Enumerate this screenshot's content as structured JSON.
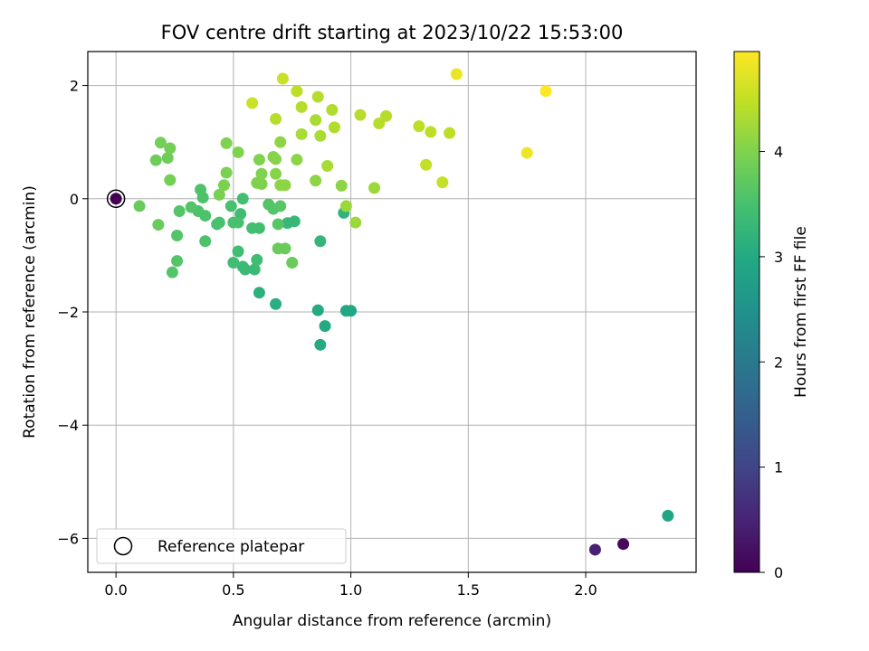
{
  "chart_data": {
    "type": "scatter",
    "title": "FOV centre drift starting at 2023/10/22 15:53:00",
    "xlabel": "Angular distance from reference (arcmin)",
    "ylabel": "Rotation from reference (arcmin)",
    "xlim": [
      -0.12,
      2.47
    ],
    "ylim": [
      -6.6,
      2.6
    ],
    "xticks": [
      0.0,
      0.5,
      1.0,
      1.5,
      2.0
    ],
    "xtick_labels": [
      "0.0",
      "0.5",
      "1.0",
      "1.5",
      "2.0"
    ],
    "yticks": [
      2,
      0,
      -2,
      -4,
      -6
    ],
    "ytick_labels": [
      "2",
      "0",
      "−2",
      "−4",
      "−6"
    ],
    "grid": true,
    "legend": {
      "position": "lower-left",
      "entries": [
        "Reference platepar"
      ]
    },
    "reference_point": {
      "x": 0.0,
      "y": 0.0,
      "color_value": 0.0
    },
    "colorbar": {
      "label": "Hours from first FF file",
      "range": [
        0,
        4.95
      ],
      "ticks": [
        0,
        1,
        2,
        3,
        4
      ],
      "tick_labels": [
        "0",
        "1",
        "2",
        "3",
        "4"
      ],
      "colormap": "viridis"
    },
    "points": [
      {
        "x": 2.16,
        "y": -6.1,
        "c": 0.1
      },
      {
        "x": 2.04,
        "y": -6.2,
        "c": 0.45
      },
      {
        "x": 2.35,
        "y": -5.6,
        "c": 2.9
      },
      {
        "x": 0.98,
        "y": -1.98,
        "c": 2.95
      },
      {
        "x": 1.0,
        "y": -1.98,
        "c": 2.95
      },
      {
        "x": 0.86,
        "y": -1.97,
        "c": 3.0
      },
      {
        "x": 0.89,
        "y": -2.25,
        "c": 3.0
      },
      {
        "x": 0.87,
        "y": -2.58,
        "c": 3.0
      },
      {
        "x": 0.68,
        "y": -1.86,
        "c": 3.1
      },
      {
        "x": 0.61,
        "y": -1.66,
        "c": 3.15
      },
      {
        "x": 0.97,
        "y": -0.25,
        "c": 3.2
      },
      {
        "x": 0.87,
        "y": -0.75,
        "c": 3.25
      },
      {
        "x": 0.76,
        "y": -0.4,
        "c": 3.3
      },
      {
        "x": 0.73,
        "y": -0.43,
        "c": 3.3
      },
      {
        "x": 0.54,
        "y": -1.2,
        "c": 3.35
      },
      {
        "x": 0.59,
        "y": -1.25,
        "c": 3.35
      },
      {
        "x": 0.55,
        "y": -1.25,
        "c": 3.35
      },
      {
        "x": 0.6,
        "y": -1.08,
        "c": 3.4
      },
      {
        "x": 0.5,
        "y": -1.13,
        "c": 3.4
      },
      {
        "x": 0.52,
        "y": -0.93,
        "c": 3.4
      },
      {
        "x": 0.53,
        "y": -0.27,
        "c": 3.4
      },
      {
        "x": 0.54,
        "y": 0.0,
        "c": 3.45
      },
      {
        "x": 0.58,
        "y": -0.52,
        "c": 3.45
      },
      {
        "x": 0.61,
        "y": -0.52,
        "c": 3.45
      },
      {
        "x": 0.43,
        "y": -0.45,
        "c": 3.5
      },
      {
        "x": 0.44,
        "y": -0.42,
        "c": 3.5
      },
      {
        "x": 0.49,
        "y": -0.13,
        "c": 3.5
      },
      {
        "x": 0.5,
        "y": -0.42,
        "c": 3.5
      },
      {
        "x": 0.52,
        "y": -0.42,
        "c": 3.5
      },
      {
        "x": 0.38,
        "y": -0.75,
        "c": 3.55
      },
      {
        "x": 0.38,
        "y": -0.3,
        "c": 3.55
      },
      {
        "x": 0.37,
        "y": 0.02,
        "c": 3.55
      },
      {
        "x": 0.36,
        "y": 0.16,
        "c": 3.55
      },
      {
        "x": 0.35,
        "y": -0.22,
        "c": 3.55
      },
      {
        "x": 0.32,
        "y": -0.15,
        "c": 3.6
      },
      {
        "x": 0.27,
        "y": -0.22,
        "c": 3.6
      },
      {
        "x": 0.26,
        "y": -0.65,
        "c": 3.6
      },
      {
        "x": 0.26,
        "y": -1.1,
        "c": 3.6
      },
      {
        "x": 0.24,
        "y": -1.3,
        "c": 3.6
      },
      {
        "x": 0.65,
        "y": -0.1,
        "c": 3.6
      },
      {
        "x": 0.67,
        "y": -0.18,
        "c": 3.6
      },
      {
        "x": 0.7,
        "y": -0.13,
        "c": 3.65
      },
      {
        "x": 0.69,
        "y": -0.45,
        "c": 3.65
      },
      {
        "x": 0.69,
        "y": -0.88,
        "c": 3.8
      },
      {
        "x": 0.72,
        "y": -0.88,
        "c": 3.8
      },
      {
        "x": 0.75,
        "y": -1.13,
        "c": 3.8
      },
      {
        "x": 0.18,
        "y": -0.46,
        "c": 3.8
      },
      {
        "x": 0.1,
        "y": -0.13,
        "c": 3.8
      },
      {
        "x": 0.17,
        "y": 0.68,
        "c": 3.85
      },
      {
        "x": 0.22,
        "y": 0.72,
        "c": 3.85
      },
      {
        "x": 0.23,
        "y": 0.89,
        "c": 3.9
      },
      {
        "x": 0.19,
        "y": 0.99,
        "c": 3.9
      },
      {
        "x": 0.23,
        "y": 0.33,
        "c": 3.9
      },
      {
        "x": 0.44,
        "y": 0.07,
        "c": 3.95
      },
      {
        "x": 0.46,
        "y": 0.24,
        "c": 3.95
      },
      {
        "x": 0.47,
        "y": 0.46,
        "c": 3.95
      },
      {
        "x": 0.47,
        "y": 0.98,
        "c": 4.0
      },
      {
        "x": 0.52,
        "y": 0.82,
        "c": 4.0
      },
      {
        "x": 0.6,
        "y": 0.28,
        "c": 4.0
      },
      {
        "x": 0.62,
        "y": 0.26,
        "c": 4.0
      },
      {
        "x": 0.62,
        "y": 0.44,
        "c": 4.0
      },
      {
        "x": 0.61,
        "y": 0.69,
        "c": 4.0
      },
      {
        "x": 0.67,
        "y": 0.74,
        "c": 4.05
      },
      {
        "x": 0.68,
        "y": 0.7,
        "c": 4.05
      },
      {
        "x": 0.68,
        "y": 0.44,
        "c": 4.05
      },
      {
        "x": 0.7,
        "y": 0.24,
        "c": 4.1
      },
      {
        "x": 0.72,
        "y": 0.24,
        "c": 4.1
      },
      {
        "x": 0.7,
        "y": 1.0,
        "c": 4.1
      },
      {
        "x": 0.77,
        "y": 0.69,
        "c": 4.1
      },
      {
        "x": 0.85,
        "y": 0.32,
        "c": 4.1
      },
      {
        "x": 0.96,
        "y": 0.23,
        "c": 4.1
      },
      {
        "x": 0.98,
        "y": -0.13,
        "c": 4.2
      },
      {
        "x": 1.02,
        "y": -0.42,
        "c": 4.2
      },
      {
        "x": 1.1,
        "y": 0.19,
        "c": 4.2
      },
      {
        "x": 0.87,
        "y": 1.11,
        "c": 4.3
      },
      {
        "x": 0.79,
        "y": 1.14,
        "c": 4.3
      },
      {
        "x": 0.9,
        "y": 0.58,
        "c": 4.3
      },
      {
        "x": 0.85,
        "y": 1.39,
        "c": 4.3
      },
      {
        "x": 0.93,
        "y": 1.26,
        "c": 4.35
      },
      {
        "x": 0.92,
        "y": 1.57,
        "c": 4.35
      },
      {
        "x": 0.86,
        "y": 1.8,
        "c": 4.4
      },
      {
        "x": 0.79,
        "y": 1.62,
        "c": 4.4
      },
      {
        "x": 0.77,
        "y": 1.9,
        "c": 4.45
      },
      {
        "x": 0.68,
        "y": 1.41,
        "c": 4.4
      },
      {
        "x": 0.58,
        "y": 1.69,
        "c": 4.55
      },
      {
        "x": 0.71,
        "y": 2.12,
        "c": 4.55
      },
      {
        "x": 1.04,
        "y": 1.48,
        "c": 4.4
      },
      {
        "x": 1.12,
        "y": 1.33,
        "c": 4.4
      },
      {
        "x": 1.15,
        "y": 1.46,
        "c": 4.4
      },
      {
        "x": 1.29,
        "y": 1.28,
        "c": 4.45
      },
      {
        "x": 1.34,
        "y": 1.18,
        "c": 4.45
      },
      {
        "x": 1.42,
        "y": 1.16,
        "c": 4.45
      },
      {
        "x": 1.32,
        "y": 0.6,
        "c": 4.5
      },
      {
        "x": 1.39,
        "y": 0.29,
        "c": 4.5
      },
      {
        "x": 1.45,
        "y": 2.2,
        "c": 4.8
      },
      {
        "x": 1.75,
        "y": 0.81,
        "c": 4.85
      },
      {
        "x": 1.83,
        "y": 1.9,
        "c": 4.95
      }
    ]
  }
}
